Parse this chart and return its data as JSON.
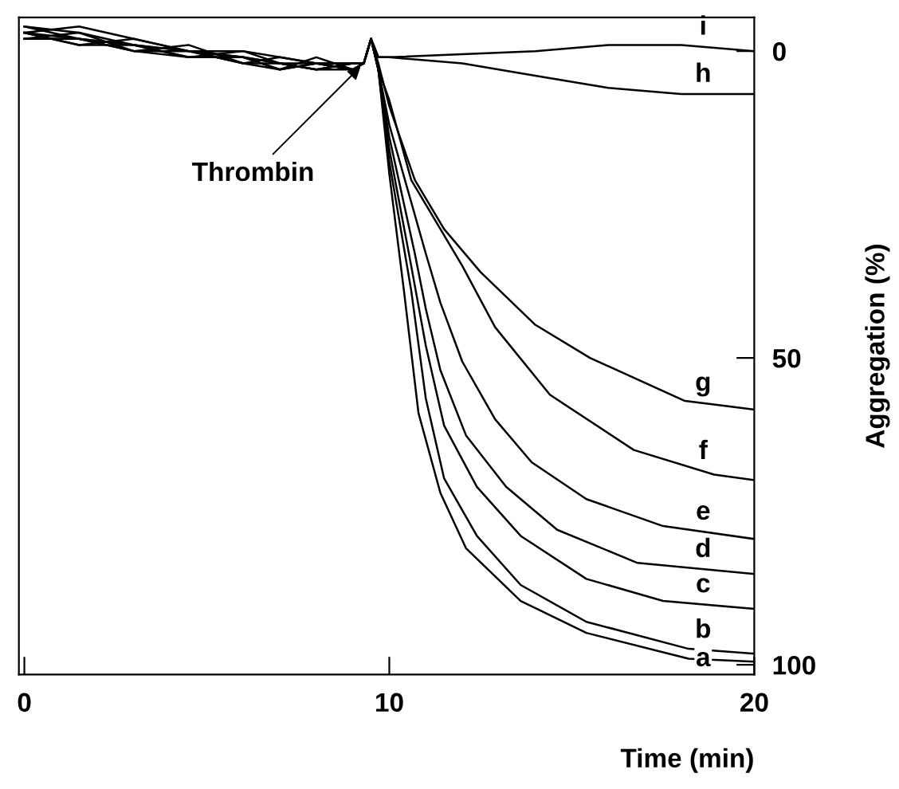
{
  "chart_data": {
    "type": "line",
    "xlabel": "Time (min)",
    "ylabel": "Aggregation (%)",
    "xlim": [
      -0.15,
      20
    ],
    "xticks": [
      0,
      10,
      20
    ],
    "ylim": [
      101.6,
      -5.5
    ],
    "yticks": [
      0,
      50,
      100
    ],
    "grid": false,
    "legend": false,
    "marker": "none",
    "line_style": "solid",
    "annotations": [
      {
        "text": "Thrombin",
        "x": 9.3,
        "y": 2
      }
    ],
    "series": [
      {
        "name": "a",
        "color": "#000000",
        "x": [
          0,
          1.5,
          3,
          4.5,
          6,
          7,
          8,
          9,
          9.3,
          9.5,
          9.7,
          10.0,
          10.4,
          10.8,
          11.4,
          12.1,
          13.6,
          15.4,
          18.2,
          20
        ],
        "values": [
          -3,
          -2,
          -1,
          0,
          1,
          3,
          2,
          3,
          2,
          -2,
          3,
          20,
          39,
          59,
          72,
          81,
          89.6,
          94.8,
          99,
          99.5
        ]
      },
      {
        "name": "b",
        "color": "#000000",
        "x": [
          0,
          1.5,
          3,
          4.5,
          6,
          7,
          8,
          9,
          9.3,
          9.5,
          9.7,
          10.0,
          10.6,
          11.0,
          11.5,
          12.4,
          13.6,
          15.4,
          18.2,
          20
        ],
        "values": [
          -2,
          -3,
          0,
          -1,
          2,
          2,
          3,
          2,
          2,
          -2,
          3,
          18,
          39,
          56.6,
          69.6,
          79,
          87,
          93,
          97.4,
          98.2
        ]
      },
      {
        "name": "c",
        "color": "#000000",
        "x": [
          0,
          1.5,
          3,
          4.5,
          6,
          7,
          8,
          9,
          9.3,
          9.5,
          9.7,
          10.0,
          10.6,
          11.0,
          11.5,
          12.4,
          13.6,
          15.4,
          17.5,
          20
        ],
        "values": [
          -4,
          -2,
          -1,
          1,
          0,
          2,
          2,
          3,
          2,
          -2,
          3,
          16,
          35,
          48,
          61,
          71,
          79,
          86,
          89.6,
          90.9
        ]
      },
      {
        "name": "d",
        "color": "#000000",
        "x": [
          0,
          1.5,
          3,
          4.5,
          6,
          7,
          8,
          9,
          9.3,
          9.5,
          9.7,
          10.0,
          10.7,
          11.0,
          11.4,
          12.1,
          13.2,
          14.6,
          16.8,
          20
        ],
        "values": [
          -3,
          -1,
          -2,
          0,
          1,
          3,
          1,
          3,
          2,
          -2,
          3,
          14,
          33,
          42,
          52,
          62.6,
          71,
          78,
          83.4,
          85.2
        ]
      },
      {
        "name": "e",
        "color": "#000000",
        "x": [
          0,
          1.5,
          3,
          4.5,
          6,
          7,
          8,
          9,
          9.3,
          9.5,
          9.7,
          10.0,
          11.0,
          11.4,
          12.0,
          12.9,
          13.9,
          15.4,
          17.5,
          20
        ],
        "values": [
          -2,
          -2,
          0,
          0,
          2,
          1,
          2,
          2,
          2,
          -2,
          3,
          12,
          33,
          41,
          50.6,
          60,
          67,
          73,
          77.4,
          79.5
        ]
      },
      {
        "name": "f",
        "color": "#000000",
        "x": [
          0,
          1.5,
          3,
          4.5,
          6,
          7,
          8,
          9,
          9.3,
          9.5,
          9.7,
          10.0,
          10.6,
          12.0,
          12.9,
          14.4,
          16.7,
          18.9,
          20
        ],
        "values": [
          -4,
          -3,
          -1,
          1,
          1,
          2,
          3,
          2,
          2,
          -2,
          3,
          8,
          21,
          35,
          45,
          56,
          65,
          69,
          69.9
        ]
      },
      {
        "name": "g",
        "color": "#000000",
        "x": [
          0,
          1.5,
          3,
          4.5,
          6,
          7,
          8,
          9,
          9.3,
          9.5,
          9.7,
          10.0,
          10.7,
          11.5,
          12.5,
          14.0,
          15.5,
          18.1,
          20
        ],
        "values": [
          -3,
          -1,
          -1,
          0,
          2,
          3,
          2,
          3,
          2,
          -2,
          2,
          9,
          21,
          29,
          36,
          44.6,
          50,
          57,
          58.4
        ]
      },
      {
        "name": "h",
        "color": "#000000",
        "x": [
          0,
          1.5,
          3,
          4.5,
          6,
          7,
          8,
          9,
          9.3,
          9.5,
          9.7,
          10,
          12,
          14,
          16,
          18,
          20
        ],
        "values": [
          -2,
          -2,
          0,
          1,
          1,
          2,
          3,
          3,
          2,
          -2,
          1,
          1,
          2,
          4,
          6,
          7,
          7
        ]
      },
      {
        "name": "i",
        "color": "#000000",
        "x": [
          0,
          1.5,
          3,
          4.5,
          6,
          7,
          8,
          9,
          9.3,
          9.5,
          9.7,
          10,
          12,
          14,
          16,
          18,
          20
        ],
        "values": [
          -3,
          -4,
          -2,
          0,
          0,
          1,
          2,
          2,
          2,
          -2,
          1,
          1,
          0.5,
          0,
          -1,
          -1,
          0
        ]
      }
    ]
  }
}
